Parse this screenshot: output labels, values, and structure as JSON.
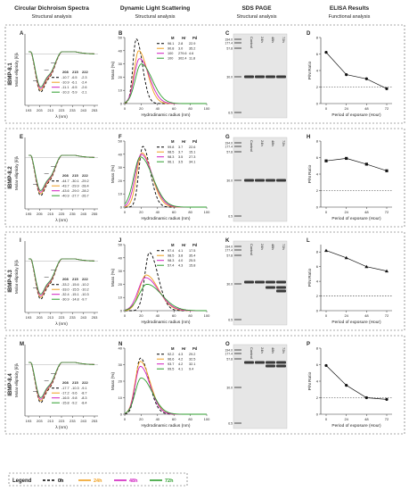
{
  "headers": [
    {
      "title": "Circular Dichroism Spectra",
      "sub": "Structural analysis"
    },
    {
      "title": "Dynamic Light Scattering",
      "sub": "Structural analysis"
    },
    {
      "title": "SDS PAGE",
      "sub": "Structural analysis"
    },
    {
      "title": "ELISA Results",
      "sub": "Functional analysis"
    }
  ],
  "series_colors": {
    "0h": "#000000",
    "24h": "#f0a020",
    "48h": "#d020c0",
    "72h": "#2e9e2e"
  },
  "legend": {
    "title": "Legend",
    "items": [
      "0h",
      "24h",
      "48h",
      "72h"
    ]
  },
  "rows": [
    {
      "row_label": "IBMP-8.1",
      "cd": {
        "letter": "A",
        "ylabel": "Molar ellipticity [θ]λ",
        "xlabel": "λ (nm)",
        "xticks": [
          "193",
          "203",
          "213",
          "223",
          "233",
          "243",
          "253"
        ],
        "table_header": [
          "208",
          "215",
          "222"
        ],
        "table_rows": [
          [
            "-10.7",
            "-6.5",
            "-2.3"
          ],
          [
            "-10.9",
            "-6.1",
            "-2.4"
          ],
          [
            "-11.1",
            "-6.5",
            "-2.6"
          ],
          [
            "-10.3",
            "-5.9",
            "-2.1"
          ]
        ]
      },
      "dls": {
        "letter": "B",
        "ylabel": "Mass (%)",
        "xlabel": "Hydrodinamic radius (nm)",
        "yticks": [
          "0",
          "10",
          "20",
          "30",
          "40",
          "50"
        ],
        "xticks": [
          "0",
          "20",
          "40",
          "60",
          "80",
          "100"
        ],
        "ymax": 50,
        "table_header": [
          "M",
          "Hr",
          "Pd"
        ],
        "table_rows": [
          [
            "96.1",
            "2.8",
            "22.9"
          ],
          [
            "90.8",
            "3.0",
            "35.2"
          ],
          [
            "100",
            "279.6",
            "4.6"
          ],
          [
            "100",
            "302.4",
            "11.8"
          ]
        ],
        "peaks": [
          {
            "p": 49,
            "c": 14,
            "w": 5
          },
          {
            "p": 40,
            "c": 17,
            "w": 7
          },
          {
            "p": 34,
            "c": 18,
            "w": 8
          },
          {
            "p": 30,
            "c": 20,
            "w": 9
          }
        ]
      },
      "sds": {
        "letter": "C",
        "markers": [
          "194.0",
          "177.4",
          "57.8",
          "30.0",
          "6.5"
        ],
        "lanes": [
          "Control",
          "24h",
          "48h",
          "72h"
        ],
        "band_rows": 1
      },
      "elisa": {
        "letter": "D",
        "ylabel": "P/N Ratio",
        "xlabel": "Period of exposure (Hour)",
        "x": [
          0,
          24,
          48,
          72
        ],
        "y": [
          6.2,
          3.5,
          3.0,
          1.8
        ],
        "ylim": [
          0,
          8
        ],
        "xticks": [
          "0",
          "24",
          "48",
          "72"
        ],
        "yticks": [
          "0",
          "2",
          "4",
          "6",
          "8"
        ],
        "threshold": 2
      }
    },
    {
      "row_label": "IBMP-8.2",
      "cd": {
        "letter": "E",
        "ylabel": "Molar ellipticity [θ]λ",
        "xlabel": "λ (nm)",
        "xticks": [
          "195",
          "205",
          "215",
          "225",
          "235",
          "245",
          "255"
        ],
        "table_header": [
          "208",
          "215",
          "222"
        ],
        "table_rows": [
          [
            "-44.7",
            "-30.1",
            "-29.2"
          ],
          [
            "-43.7",
            "-29.9",
            "-28.4"
          ],
          [
            "-43.6",
            "-29.0",
            "-28.2"
          ],
          [
            "-40.9",
            "-27.7",
            "-26.7"
          ]
        ]
      },
      "dls": {
        "letter": "F",
        "ylabel": "Mass (%)",
        "xlabel": "Hydrodinamic radius (nm)",
        "yticks": [
          "0",
          "10",
          "20",
          "30",
          "40",
          "50"
        ],
        "xticks": [
          "0",
          "20",
          "40",
          "60",
          "80",
          "100"
        ],
        "ymax": 50,
        "table_header": [
          "M",
          "Hr",
          "Pd"
        ],
        "table_rows": [
          [
            "99.8",
            "3.7",
            "22.6"
          ],
          [
            "98.5",
            "3.7",
            "15.1"
          ],
          [
            "98.3",
            "3.5",
            "27.3"
          ],
          [
            "96.1",
            "3.5",
            "34.1"
          ]
        ],
        "peaks": [
          {
            "p": 46,
            "c": 22,
            "w": 6
          },
          {
            "p": 41,
            "c": 21,
            "w": 8
          },
          {
            "p": 40,
            "c": 20,
            "w": 9
          },
          {
            "p": 38,
            "c": 19,
            "w": 10
          }
        ]
      },
      "sds": {
        "letter": "G",
        "markers": [
          "194.0",
          "177.4",
          "57.8",
          "30.0",
          "6.5"
        ],
        "lanes": [
          "Control",
          "24h",
          "48h",
          "72h"
        ],
        "band_rows": 1
      },
      "elisa": {
        "letter": "H",
        "ylabel": "P/N Ratio",
        "xlabel": "Period of exposure (Hour)",
        "x": [
          0,
          24,
          48,
          72
        ],
        "y": [
          5.6,
          5.9,
          5.2,
          4.4
        ],
        "ylim": [
          0,
          8
        ],
        "xticks": [
          "0",
          "24",
          "48",
          "72"
        ],
        "yticks": [
          "0",
          "2",
          "4",
          "6",
          "8"
        ],
        "threshold": 2
      }
    },
    {
      "row_label": "IBMP-8.3",
      "cd": {
        "letter": "I",
        "ylabel": "Molar ellipticity [θ]λ",
        "xlabel": "λ (nm)",
        "xticks": [
          "193",
          "203",
          "213",
          "223",
          "233",
          "243",
          "253"
        ],
        "table_header": [
          "208",
          "215",
          "222"
        ],
        "table_rows": [
          [
            "-33.2",
            "-15.6",
            "-10.2"
          ],
          [
            "-33.0",
            "-15.5",
            "-10.2"
          ],
          [
            "-32.4",
            "-15.1",
            "-10.3"
          ],
          [
            "-30.9",
            "-14.8",
            "-9.7"
          ]
        ]
      },
      "dls": {
        "letter": "J",
        "ylabel": "Mass (%)",
        "xlabel": "Hydrodinamic radius (nm)",
        "yticks": [
          "0",
          "10",
          "20",
          "30",
          "40",
          "50"
        ],
        "xticks": [
          "0",
          "20",
          "40",
          "60",
          "80",
          "100"
        ],
        "ymax": 50,
        "table_header": [
          "M",
          "Hr",
          "Pd"
        ],
        "table_rows": [
          [
            "97.4",
            "4.1",
            "17.5"
          ],
          [
            "98.5",
            "3.8",
            "35.4"
          ],
          [
            "98.3",
            "4.0",
            "25.5"
          ],
          [
            "57.4",
            "4.3",
            "15.8"
          ]
        ],
        "peaks": [
          {
            "p": 44,
            "c": 30,
            "w": 7
          },
          {
            "p": 27,
            "c": 26,
            "w": 10
          },
          {
            "p": 25,
            "c": 25,
            "w": 11
          },
          {
            "p": 20,
            "c": 27,
            "w": 12
          }
        ]
      },
      "sds": {
        "letter": "K",
        "markers": [
          "194.0",
          "177.4",
          "57.8",
          "30.0",
          "6.5"
        ],
        "lanes": [
          "Control",
          "24h",
          "48h",
          "72h"
        ],
        "band_rows": 3
      },
      "elisa": {
        "letter": "L",
        "ylabel": "P/N Ratio",
        "xlabel": "Period of exposure (Hour)",
        "x": [
          0,
          24,
          48,
          72
        ],
        "y": [
          8.2,
          7.2,
          6.0,
          5.4
        ],
        "ylim": [
          0,
          9
        ],
        "xticks": [
          "0",
          "24",
          "48",
          "72"
        ],
        "yticks": [
          "0",
          "2",
          "4",
          "6",
          "8"
        ],
        "threshold": 2
      }
    },
    {
      "row_label": "IBMP-8.4",
      "cd": {
        "letter": "M",
        "ylabel": "Molar ellipticity [θ]λ",
        "xlabel": "λ (nm)",
        "xticks": [
          "193",
          "203",
          "213",
          "223",
          "233",
          "243",
          "253"
        ],
        "table_header": [
          "208",
          "215",
          "222"
        ],
        "table_rows": [
          [
            "-17.7",
            "-10.3",
            "-9.1"
          ],
          [
            "-17.2",
            "-9.6",
            "-8.7"
          ],
          [
            "-16.5",
            "-9.8",
            "-8.3"
          ],
          [
            "-15.8",
            "-9.2",
            "-8.4"
          ]
        ]
      },
      "dls": {
        "letter": "N",
        "ylabel": "Mass (%)",
        "xlabel": "Hydrodinamic radius (nm)",
        "yticks": [
          "0",
          "10",
          "20",
          "30",
          "40"
        ],
        "xticks": [
          "0",
          "20",
          "40",
          "60",
          "80",
          "100"
        ],
        "ymax": 40,
        "table_header": [
          "M",
          "Hr",
          "Pd"
        ],
        "table_rows": [
          [
            "92.2",
            "4.3",
            "29.2"
          ],
          [
            "96.6",
            "4.2",
            "32.5"
          ],
          [
            "93.7",
            "4.2",
            "32.1"
          ],
          [
            "99.5",
            "4.1",
            "9.4"
          ]
        ],
        "peaks": [
          {
            "p": 34,
            "c": 19,
            "w": 7
          },
          {
            "p": 32,
            "c": 19,
            "w": 8
          },
          {
            "p": 29,
            "c": 19,
            "w": 8
          },
          {
            "p": 22,
            "c": 20,
            "w": 9
          }
        ]
      },
      "sds": {
        "letter": "O",
        "markers": [
          "194.0",
          "177.4",
          "57.8",
          "30.0",
          "6.5"
        ],
        "lanes": [
          "Control",
          "24h",
          "48h",
          "72h"
        ],
        "band_rows": 2
      },
      "elisa": {
        "letter": "P",
        "ylabel": "P/N Ratio",
        "xlabel": "Period of exposure (Hour)",
        "x": [
          0,
          24,
          48,
          72
        ],
        "y": [
          5.9,
          3.5,
          2.0,
          1.8
        ],
        "ylim": [
          0,
          8
        ],
        "xticks": [
          "0",
          "24",
          "48",
          "72"
        ],
        "yticks": [
          "0",
          "2",
          "4",
          "6",
          "8"
        ],
        "threshold": 2
      }
    }
  ],
  "chart_data": [
    {
      "type": "line",
      "panel": "D",
      "x": [
        0,
        24,
        48,
        72
      ],
      "y": [
        6.2,
        3.5,
        3.0,
        1.8
      ],
      "xlabel": "Period of exposure (Hour)",
      "ylabel": "P/N Ratio",
      "ylim": [
        0,
        8
      ]
    },
    {
      "type": "line",
      "panel": "H",
      "x": [
        0,
        24,
        48,
        72
      ],
      "y": [
        5.6,
        5.9,
        5.2,
        4.4
      ],
      "xlabel": "Period of exposure (Hour)",
      "ylabel": "P/N Ratio",
      "ylim": [
        0,
        8
      ]
    },
    {
      "type": "line",
      "panel": "L",
      "x": [
        0,
        24,
        48,
        72
      ],
      "y": [
        8.2,
        7.2,
        6.0,
        5.4
      ],
      "xlabel": "Period of exposure (Hour)",
      "ylabel": "P/N Ratio",
      "ylim": [
        0,
        9
      ]
    },
    {
      "type": "line",
      "panel": "P",
      "x": [
        0,
        24,
        48,
        72
      ],
      "y": [
        5.9,
        3.5,
        2.0,
        1.8
      ],
      "xlabel": "Period of exposure (Hour)",
      "ylabel": "P/N Ratio",
      "ylim": [
        0,
        8
      ]
    },
    {
      "type": "line",
      "panel": "B",
      "series": [
        {
          "name": "0h",
          "peak_mass": 49,
          "peak_radius": 14
        },
        {
          "name": "24h",
          "peak_mass": 40,
          "peak_radius": 17
        },
        {
          "name": "48h",
          "peak_mass": 34,
          "peak_radius": 18
        },
        {
          "name": "72h",
          "peak_mass": 30,
          "peak_radius": 20
        }
      ]
    },
    {
      "type": "line",
      "panel": "F",
      "series": [
        {
          "name": "0h",
          "peak_mass": 46,
          "peak_radius": 22
        },
        {
          "name": "24h",
          "peak_mass": 41,
          "peak_radius": 21
        },
        {
          "name": "48h",
          "peak_mass": 40,
          "peak_radius": 20
        },
        {
          "name": "72h",
          "peak_mass": 38,
          "peak_radius": 19
        }
      ]
    },
    {
      "type": "line",
      "panel": "J",
      "series": [
        {
          "name": "0h",
          "peak_mass": 44,
          "peak_radius": 30
        },
        {
          "name": "24h",
          "peak_mass": 27,
          "peak_radius": 26
        },
        {
          "name": "48h",
          "peak_mass": 25,
          "peak_radius": 25
        },
        {
          "name": "72h",
          "peak_mass": 20,
          "peak_radius": 27
        }
      ]
    },
    {
      "type": "line",
      "panel": "N",
      "series": [
        {
          "name": "0h",
          "peak_mass": 34,
          "peak_radius": 19
        },
        {
          "name": "24h",
          "peak_mass": 32,
          "peak_radius": 19
        },
        {
          "name": "48h",
          "peak_mass": 29,
          "peak_radius": 19
        },
        {
          "name": "72h",
          "peak_mass": 22,
          "peak_radius": 20
        }
      ]
    }
  ]
}
